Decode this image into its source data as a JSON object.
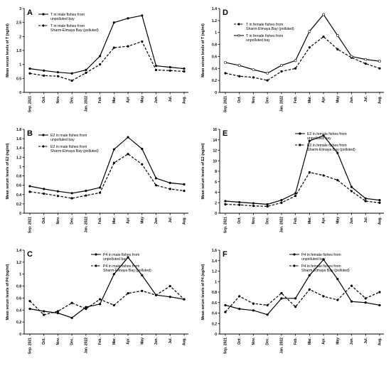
{
  "chart_data": [
    {
      "panel": "A",
      "type": "line",
      "ylabel": "Mean serum levels of  T  (ng/ml)",
      "ylim": [
        0,
        3
      ],
      "yticks": [
        "0",
        "0.5",
        "1",
        "1.5",
        "2",
        "2.5",
        "3"
      ],
      "categories": [
        "Sep. 2021",
        "Oct.",
        "Nov.",
        "Dec.",
        "Jan. 2022",
        "Feb.",
        "Mar.",
        "Apr.",
        "May",
        "Jun.",
        "Jul.",
        "Aug."
      ],
      "legend_position": "top-left",
      "series": [
        {
          "name": "T  in male fishes from unpolluted bay",
          "style": "solid",
          "values": [
            0.85,
            0.78,
            0.72,
            0.68,
            0.8,
            1.3,
            2.5,
            2.65,
            2.75,
            0.95,
            0.9,
            0.85
          ]
        },
        {
          "name": "T  in male fishes from Sharm-Elmaya Bay (polluted)",
          "style": "dashed",
          "values": [
            0.68,
            0.6,
            0.58,
            0.42,
            0.7,
            1.0,
            1.6,
            1.65,
            1.82,
            0.8,
            0.78,
            0.75
          ]
        }
      ]
    },
    {
      "panel": "B",
      "type": "line",
      "ylabel": "Mean serum levels of  E2  (ng/ml)",
      "ylim": [
        0,
        1.8
      ],
      "yticks": [
        "0",
        "0.2",
        "0.4",
        "0.6",
        "0.8",
        "1",
        "1.2",
        "1.4",
        "1.6",
        "1.8"
      ],
      "categories": [
        "Sep. 2021",
        "Oct.",
        "Nov.",
        "Dec.",
        "Jan. 2022",
        "Feb.",
        "Mar.",
        "Apr.",
        "May",
        "Jun.",
        "Jul.",
        "Aug."
      ],
      "legend_position": "top-left",
      "series": [
        {
          "name": "E2 in male fishes from unpolluted bay",
          "style": "solid",
          "values": [
            0.58,
            0.52,
            0.47,
            0.43,
            0.48,
            0.55,
            1.37,
            1.63,
            1.38,
            0.75,
            0.65,
            0.62
          ]
        },
        {
          "name": "E2 in male fishes from Sharm-Elmaya Bay (polluted)",
          "style": "dashed",
          "values": [
            0.46,
            0.42,
            0.37,
            0.32,
            0.38,
            0.44,
            1.08,
            1.27,
            1.05,
            0.6,
            0.52,
            0.48
          ]
        }
      ]
    },
    {
      "panel": "C",
      "type": "line",
      "ylabel": "Mean serum levels of  P4  (ng/ml)",
      "ylim": [
        0,
        1.4
      ],
      "yticks": [
        "0",
        "0.2",
        "0.4",
        "0.6",
        "0.8",
        "1",
        "1.2",
        "1.4"
      ],
      "categories": [
        "Sep. 2021",
        "Oct.",
        "Nov.",
        "Dec.",
        "Jan. 2022",
        "Feb.",
        "Mar.",
        "Apr.",
        "May",
        "Jun.",
        "Jul.",
        "Aug."
      ],
      "legend_position": "top-right",
      "series": [
        {
          "name": "P4 in male fishes from unpolluted bay",
          "style": "solid",
          "values": [
            0.42,
            0.38,
            0.35,
            0.27,
            0.45,
            0.5,
            1.0,
            1.28,
            0.98,
            0.65,
            0.62,
            0.58
          ]
        },
        {
          "name": "P4 in male fishes from Sharm-Elmaya Bay (polluted)",
          "style": "dashed",
          "values": [
            0.55,
            0.32,
            0.38,
            0.52,
            0.42,
            0.58,
            0.48,
            0.68,
            0.72,
            0.65,
            0.8,
            0.58
          ]
        }
      ]
    },
    {
      "panel": "D",
      "type": "line",
      "ylabel": "Mean serum levels of  T  (ng/ml)",
      "ylim": [
        0,
        1.4
      ],
      "yticks": [
        "0",
        "0.2",
        "0.4",
        "0.6",
        "0.8",
        "1",
        "1.2",
        "1.4"
      ],
      "categories": [
        "Sep. 2021",
        "Oct.",
        "Nov.",
        "Dec.",
        "Jan. 2022",
        "Feb.",
        "Mar.",
        "Apr.",
        "May",
        "Jun.",
        "Jul.",
        "Aug."
      ],
      "legend_position": "top-left",
      "series": [
        {
          "name": "T  in female fishes from Sharm-Elmaya Bay (polluted)",
          "style": "dashed",
          "values": [
            0.32,
            0.27,
            0.25,
            0.2,
            0.35,
            0.4,
            0.75,
            0.93,
            0.72,
            0.58,
            0.48,
            0.4
          ]
        },
        {
          "name": "T  in female fishes from unpolluted bay",
          "style": "solid",
          "values": [
            0.5,
            0.45,
            0.38,
            0.32,
            0.45,
            0.53,
            1.02,
            1.3,
            0.95,
            0.6,
            0.55,
            0.52
          ]
        }
      ]
    },
    {
      "panel": "E",
      "type": "line",
      "ylabel": "Mean serum levels of  E2  (ng/ml)",
      "ylim": [
        0,
        16
      ],
      "yticks": [
        "0",
        "2",
        "4",
        "6",
        "8",
        "10",
        "12",
        "14",
        "16"
      ],
      "categories": [
        "Sep. 2021",
        "Oct.",
        "Nov.",
        "Dec.",
        "Jan. 2022",
        "Feb.",
        "Mar.",
        "Apr.",
        "May",
        "Jun.",
        "Jul.",
        "Aug."
      ],
      "legend_position": "top-right",
      "series": [
        {
          "name": "E2  in female fishes from unpolluted bay",
          "style": "solid",
          "values": [
            2.3,
            2.1,
            1.9,
            1.7,
            2.5,
            3.8,
            13.8,
            14.8,
            11.5,
            5.0,
            2.8,
            2.5
          ]
        },
        {
          "name": "E2 in female fishes from Sharm-Elmaya Bay (polluted)",
          "style": "dashed",
          "values": [
            1.7,
            1.6,
            1.4,
            1.3,
            2.0,
            3.3,
            7.8,
            7.2,
            6.3,
            4.2,
            2.3,
            2.0
          ]
        }
      ]
    },
    {
      "panel": "F",
      "type": "line",
      "ylabel": "Mean serum levels of  P4  (ng/ml)",
      "ylim": [
        0,
        1.6
      ],
      "yticks": [
        "0",
        "0.2",
        "0.4",
        "0.6",
        "0.8",
        "1",
        "1.2",
        "1.4",
        "1.6"
      ],
      "categories": [
        "Sep. 2021",
        "Oct.",
        "Nov.",
        "Dec.",
        "Jan. 2022",
        "Feb.",
        "Mar.",
        "Apr.",
        "May",
        "Jun.",
        "Jul.",
        "Aug."
      ],
      "legend_position": "top-right",
      "series": [
        {
          "name": "P4  in female fishes from unpolluted bay",
          "style": "solid",
          "values": [
            0.55,
            0.48,
            0.45,
            0.37,
            0.68,
            0.68,
            1.12,
            1.42,
            1.05,
            0.62,
            0.6,
            0.55
          ]
        },
        {
          "name": "P4 in female fishes from Sharm-Elmaya Bay (polluted)",
          "style": "dashed",
          "values": [
            0.42,
            0.72,
            0.58,
            0.55,
            0.78,
            0.52,
            0.85,
            0.72,
            0.65,
            0.92,
            0.68,
            0.8
          ]
        }
      ]
    }
  ]
}
